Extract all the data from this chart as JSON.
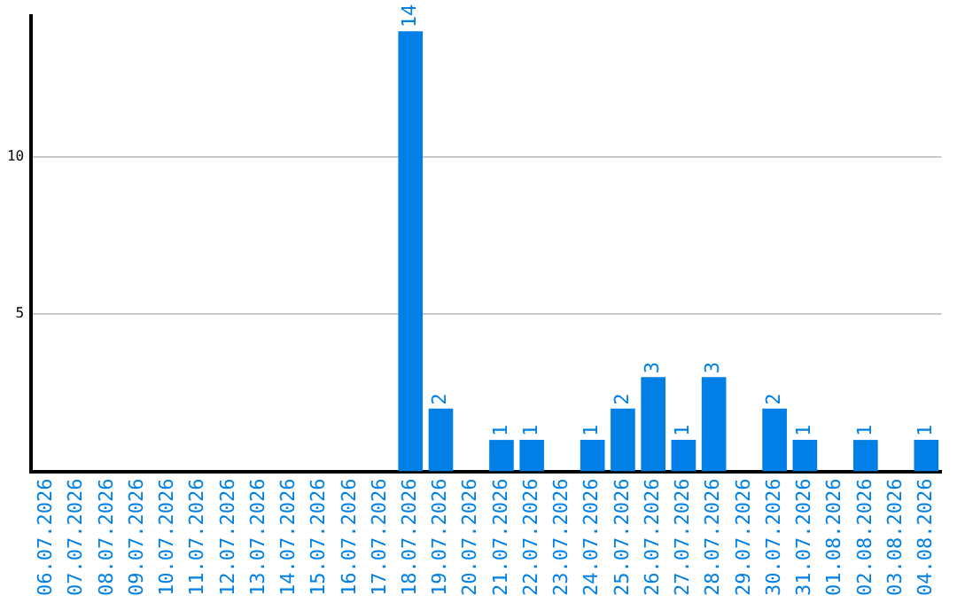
{
  "chart_data": {
    "type": "bar",
    "categories": [
      "06.07.2026",
      "07.07.2026",
      "08.07.2026",
      "09.07.2026",
      "10.07.2026",
      "11.07.2026",
      "12.07.2026",
      "13.07.2026",
      "14.07.2026",
      "15.07.2026",
      "16.07.2026",
      "17.07.2026",
      "18.07.2026",
      "19.07.2026",
      "20.07.2026",
      "21.07.2026",
      "22.07.2026",
      "23.07.2026",
      "24.07.2026",
      "25.07.2026",
      "26.07.2026",
      "27.07.2026",
      "28.07.2026",
      "29.07.2026",
      "30.07.2026",
      "31.07.2026",
      "01.08.2026",
      "02.08.2026",
      "03.08.2026",
      "04.08.2026"
    ],
    "values": [
      0,
      0,
      0,
      0,
      0,
      0,
      0,
      0,
      0,
      0,
      0,
      0,
      14,
      2,
      0,
      1,
      1,
      0,
      1,
      2,
      3,
      1,
      3,
      0,
      2,
      1,
      0,
      1,
      0,
      1
    ],
    "value_labels": [
      null,
      null,
      null,
      null,
      null,
      null,
      null,
      null,
      null,
      null,
      null,
      null,
      "14",
      "2",
      null,
      "1",
      "1",
      null,
      "1",
      "2",
      "3",
      "1",
      "3",
      null,
      "2",
      "1",
      null,
      "1",
      null,
      "1"
    ],
    "color": "#0080e6",
    "ylim": [
      0,
      14.5
    ],
    "yticks": [
      5,
      10
    ],
    "grid": "y",
    "legend": false
  }
}
